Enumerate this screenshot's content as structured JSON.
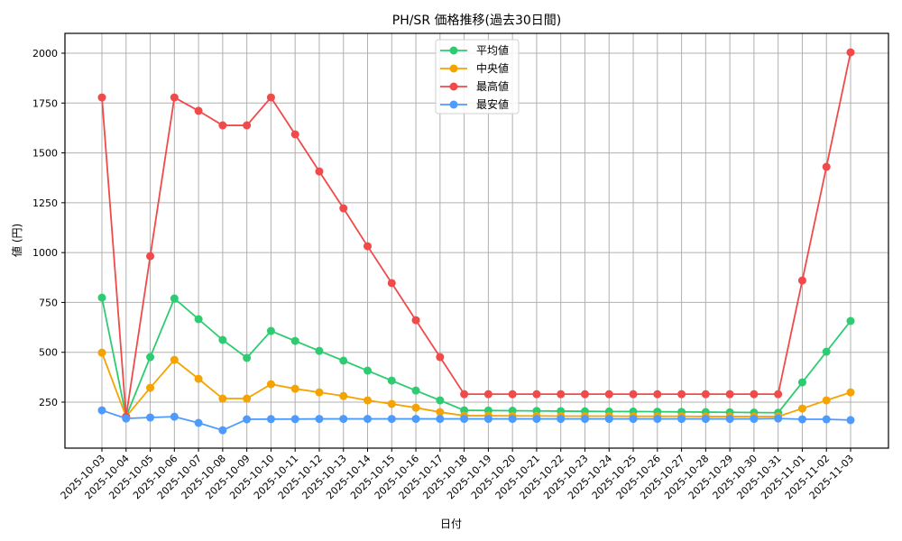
{
  "chart_data": {
    "type": "line",
    "title": "PH/SR 価格推移(過去30日間)",
    "xlabel": "日付",
    "ylabel": "値 (円)",
    "ylim": [
      20,
      2100
    ],
    "yticks": [
      250,
      500,
      750,
      1000,
      1250,
      1500,
      1750,
      2000
    ],
    "grid": true,
    "legend_position": "upper center",
    "categories": [
      "2025-10-03",
      "2025-10-04",
      "2025-10-05",
      "2025-10-06",
      "2025-10-07",
      "2025-10-08",
      "2025-10-09",
      "2025-10-10",
      "2025-10-11",
      "2025-10-12",
      "2025-10-13",
      "2025-10-14",
      "2025-10-15",
      "2025-10-16",
      "2025-10-17",
      "2025-10-18",
      "2025-10-19",
      "2025-10-20",
      "2025-10-21",
      "2025-10-22",
      "2025-10-23",
      "2025-10-24",
      "2025-10-25",
      "2025-10-26",
      "2025-10-27",
      "2025-10-28",
      "2025-10-29",
      "2025-10-30",
      "2025-10-31",
      "2025-11-01",
      "2025-11-02",
      "2025-11-03"
    ],
    "series": [
      {
        "name": "平均値",
        "color": "#2ecc71",
        "values": [
          774,
          177,
          476,
          770,
          666,
          562,
          472,
          607,
          557,
          507,
          458,
          408,
          358,
          308,
          259,
          209,
          208,
          207,
          206,
          205,
          204,
          203,
          203,
          202,
          201,
          200,
          199,
          198,
          197,
          349,
          503,
          657
        ]
      },
      {
        "name": "中央値",
        "color": "#f5a300",
        "values": [
          498,
          177,
          322,
          462,
          367,
          268,
          268,
          340,
          317,
          299,
          281,
          259,
          241,
          222,
          200,
          182,
          182,
          181,
          181,
          180,
          180,
          180,
          179,
          179,
          179,
          178,
          178,
          178,
          178,
          218,
          259,
          299
        ]
      },
      {
        "name": "最高値",
        "color": "#f04a4a",
        "values": [
          1778,
          177,
          982,
          1778,
          1711,
          1638,
          1638,
          1778,
          1593,
          1407,
          1222,
          1032,
          847,
          661,
          476,
          290,
          290,
          290,
          290,
          290,
          290,
          290,
          290,
          290,
          290,
          290,
          290,
          290,
          290,
          860,
          1430,
          2004
        ]
      },
      {
        "name": "最安値",
        "color": "#4d9bff",
        "values": [
          209,
          168,
          173,
          177,
          146,
          109,
          164,
          165,
          165,
          166,
          166,
          166,
          166,
          166,
          166,
          166,
          166,
          166,
          166,
          166,
          166,
          166,
          166,
          166,
          166,
          166,
          166,
          166,
          168,
          164,
          164,
          160
        ]
      }
    ]
  }
}
